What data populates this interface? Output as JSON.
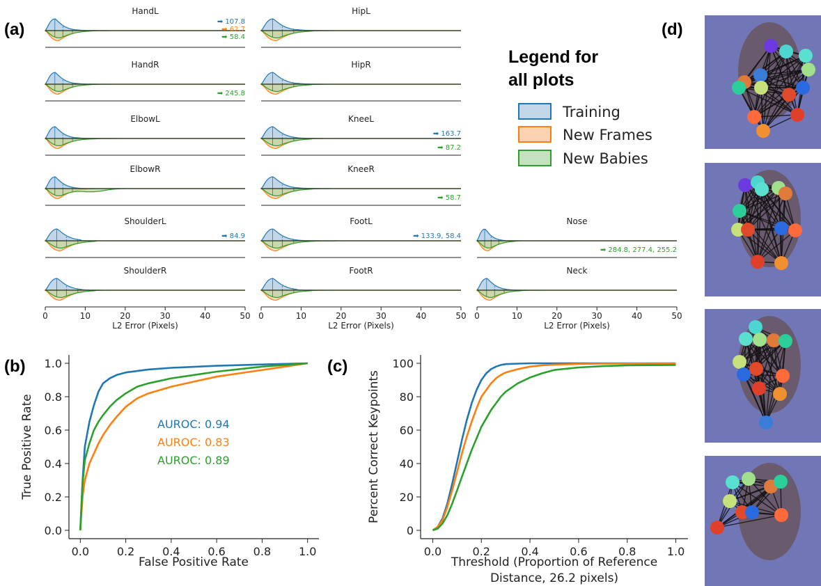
{
  "panel_labels": {
    "a": "(a)",
    "b": "(b)",
    "c": "(c)",
    "d": "(d)"
  },
  "legend": {
    "title_line1": "Legend for",
    "title_line2": "all plots",
    "items": [
      {
        "label": "Training",
        "color": "#1f77b4",
        "fill": "#c2d6ea"
      },
      {
        "label": "New Frames",
        "color": "#ff7f0e",
        "fill": "#fbd3b3"
      },
      {
        "label": "New Babies",
        "color": "#2ca02c",
        "fill": "#c4e1c0"
      }
    ]
  },
  "colors": {
    "training": "#1f77b4",
    "new_frames": "#ff7f0e",
    "new_babies": "#2ca02c"
  },
  "chart_data": [
    {
      "id": "a",
      "type": "area",
      "subtype": "mirrored kernel density plots of L2 error per keypoint",
      "xlabel": "L2 Error (Pixels)",
      "xlim": [
        0,
        50
      ],
      "xticks": [
        0,
        10,
        20,
        30,
        40,
        50
      ],
      "series_names": [
        "Training",
        "New Frames",
        "New Babies"
      ],
      "subplots": [
        {
          "title": "HandL",
          "col": 0,
          "row": 0,
          "peak": 2.5,
          "train_tail": 33,
          "test_tail": 22,
          "green_hump": false,
          "annotations": [
            {
              "text": "➡ 107.8",
              "color": "#1f77b4"
            },
            {
              "text": "➡ 62.7",
              "color": "#ff7f0e"
            },
            {
              "text": "➡ 58.4",
              "color": "#2ca02c"
            }
          ]
        },
        {
          "title": "HandR",
          "col": 0,
          "row": 1,
          "peak": 2.5,
          "train_tail": 30,
          "test_tail": 25,
          "green_hump": false,
          "annotations": [
            {
              "text": "➡ 245.8",
              "color": "#2ca02c"
            }
          ]
        },
        {
          "title": "ElbowL",
          "col": 0,
          "row": 2,
          "peak": 2.5,
          "train_tail": 32,
          "test_tail": 38,
          "green_hump": false,
          "annotations": []
        },
        {
          "title": "ElbowR",
          "col": 0,
          "row": 3,
          "peak": 2.5,
          "train_tail": 20,
          "test_tail": 22,
          "green_hump": true,
          "annotations": []
        },
        {
          "title": "ShoulderL",
          "col": 0,
          "row": 4,
          "peak": 3,
          "train_tail": 12,
          "test_tail": 14,
          "green_hump": false,
          "annotations": [
            {
              "text": "➡ 84.9",
              "color": "#1f77b4"
            }
          ]
        },
        {
          "title": "ShoulderR",
          "col": 0,
          "row": 5,
          "peak": 3,
          "train_tail": 18,
          "test_tail": 16,
          "green_hump": false,
          "annotations": []
        },
        {
          "title": "HipL",
          "col": 1,
          "row": 0,
          "peak": 3,
          "train_tail": 35,
          "test_tail": 25,
          "green_hump": false,
          "annotations": []
        },
        {
          "title": "HipR",
          "col": 1,
          "row": 1,
          "peak": 3,
          "train_tail": 30,
          "test_tail": 20,
          "green_hump": false,
          "annotations": []
        },
        {
          "title": "KneeL",
          "col": 1,
          "row": 2,
          "peak": 3,
          "train_tail": 20,
          "test_tail": 18,
          "green_hump": false,
          "annotations": [
            {
              "text": "➡ 163.7",
              "color": "#1f77b4"
            },
            {
              "text": "➡ 87.2",
              "color": "#2ca02c"
            }
          ]
        },
        {
          "title": "KneeR",
          "col": 1,
          "row": 3,
          "peak": 3,
          "train_tail": 30,
          "test_tail": 22,
          "green_hump": false,
          "annotations": [
            {
              "text": "➡ 58.7",
              "color": "#2ca02c"
            }
          ]
        },
        {
          "title": "FootL",
          "col": 1,
          "row": 4,
          "peak": 3,
          "train_tail": 20,
          "test_tail": 30,
          "green_hump": false,
          "annotations": [
            {
              "text": "➡ 133.9, 58.4",
              "color": "#1f77b4"
            }
          ]
        },
        {
          "title": "FootR",
          "col": 1,
          "row": 5,
          "peak": 3,
          "train_tail": 15,
          "test_tail": 20,
          "green_hump": false,
          "annotations": []
        },
        {
          "title": "Nose",
          "col": 2,
          "row": 4,
          "peak": 2,
          "train_tail": 14,
          "test_tail": 12,
          "green_hump": false,
          "annotations": [
            {
              "text": "➡ 284.8, 277.4, 255.2",
              "color": "#2ca02c"
            }
          ]
        },
        {
          "title": "Neck",
          "col": 2,
          "row": 5,
          "peak": 2.5,
          "train_tail": 20,
          "test_tail": 20,
          "green_hump": false,
          "annotations": []
        }
      ]
    },
    {
      "id": "b",
      "type": "line",
      "subtype": "ROC curves",
      "xlabel": "False Positive Rate",
      "ylabel": "True Positive Rate",
      "xlim": [
        -0.05,
        1.05
      ],
      "ylim": [
        -0.05,
        1.05
      ],
      "xticks": [
        "0.0",
        "0.2",
        "0.4",
        "0.6",
        "0.8",
        "1.0"
      ],
      "yticks": [
        "0.0",
        "0.2",
        "0.4",
        "0.6",
        "0.8",
        "1.0"
      ],
      "series": [
        {
          "name": "Training",
          "color": "#1f77b4",
          "annotation": "AUROC: 0.94",
          "x": [
            0,
            0.01,
            0.02,
            0.04,
            0.06,
            0.08,
            0.1,
            0.13,
            0.16,
            0.2,
            0.3,
            0.4,
            0.6,
            0.8,
            1.0
          ],
          "y": [
            0,
            0.3,
            0.5,
            0.65,
            0.75,
            0.83,
            0.88,
            0.91,
            0.93,
            0.945,
            0.963,
            0.973,
            0.985,
            0.993,
            1.0
          ]
        },
        {
          "name": "New Frames",
          "color": "#ff7f0e",
          "annotation": "AUROC: 0.83",
          "x": [
            0,
            0.01,
            0.02,
            0.04,
            0.06,
            0.08,
            0.1,
            0.13,
            0.16,
            0.2,
            0.25,
            0.3,
            0.4,
            0.5,
            0.6,
            0.7,
            0.8,
            0.9,
            1.0
          ],
          "y": [
            0,
            0.2,
            0.3,
            0.4,
            0.46,
            0.52,
            0.57,
            0.63,
            0.68,
            0.74,
            0.79,
            0.82,
            0.86,
            0.89,
            0.92,
            0.94,
            0.96,
            0.98,
            1.0
          ]
        },
        {
          "name": "New Babies",
          "color": "#2ca02c",
          "annotation": "AUROC: 0.89",
          "x": [
            0,
            0.01,
            0.02,
            0.04,
            0.06,
            0.08,
            0.1,
            0.13,
            0.16,
            0.2,
            0.25,
            0.3,
            0.4,
            0.5,
            0.6,
            0.8,
            1.0
          ],
          "y": [
            0,
            0.28,
            0.42,
            0.52,
            0.6,
            0.65,
            0.69,
            0.74,
            0.78,
            0.82,
            0.86,
            0.88,
            0.91,
            0.93,
            0.95,
            0.98,
            1.0
          ]
        }
      ]
    },
    {
      "id": "c",
      "type": "line",
      "subtype": "PCK curves",
      "xlabel_line1": "Threshold (Proportion of Reference",
      "xlabel_line2": "Distance, 26.2 pixels)",
      "ylabel": "Percent Correct Keypoints",
      "xlim": [
        -0.05,
        1.05
      ],
      "ylim": [
        -5,
        105
      ],
      "xticks": [
        "0.0",
        "0.2",
        "0.4",
        "0.6",
        "0.8",
        "1.0"
      ],
      "yticks": [
        "0",
        "20",
        "40",
        "60",
        "80",
        "100"
      ],
      "series": [
        {
          "name": "Training",
          "color": "#1f77b4",
          "x": [
            0,
            0.02,
            0.04,
            0.06,
            0.08,
            0.1,
            0.12,
            0.14,
            0.16,
            0.18,
            0.2,
            0.22,
            0.24,
            0.26,
            0.28,
            0.3,
            0.35,
            0.4,
            0.5,
            0.6,
            1.0
          ],
          "y": [
            0,
            2,
            7,
            16,
            28,
            41,
            54,
            66,
            76,
            84,
            90,
            94,
            96.5,
            98,
            99,
            99.5,
            99.8,
            100,
            100,
            100,
            100
          ]
        },
        {
          "name": "New Frames",
          "color": "#ff7f0e",
          "x": [
            0,
            0.02,
            0.04,
            0.06,
            0.08,
            0.1,
            0.12,
            0.14,
            0.16,
            0.18,
            0.2,
            0.22,
            0.24,
            0.26,
            0.28,
            0.3,
            0.35,
            0.4,
            0.45,
            0.5,
            0.6,
            0.7,
            1.0
          ],
          "y": [
            0,
            2,
            6,
            14,
            24,
            35,
            46,
            56,
            65,
            73,
            80,
            84,
            88,
            91,
            93,
            94.5,
            96.5,
            98,
            98.8,
            99.2,
            99.6,
            99.8,
            100
          ]
        },
        {
          "name": "New Babies",
          "color": "#2ca02c",
          "x": [
            0,
            0.02,
            0.04,
            0.06,
            0.08,
            0.1,
            0.12,
            0.14,
            0.16,
            0.18,
            0.2,
            0.22,
            0.24,
            0.26,
            0.28,
            0.3,
            0.35,
            0.4,
            0.45,
            0.5,
            0.6,
            0.7,
            0.8,
            1.0
          ],
          "y": [
            0,
            1,
            4,
            9,
            16,
            24,
            32,
            40,
            48,
            55,
            62,
            67,
            72,
            76,
            80,
            83,
            88,
            91.5,
            94,
            96,
            97.5,
            98.3,
            98.8,
            99
          ]
        }
      ]
    }
  ]
}
